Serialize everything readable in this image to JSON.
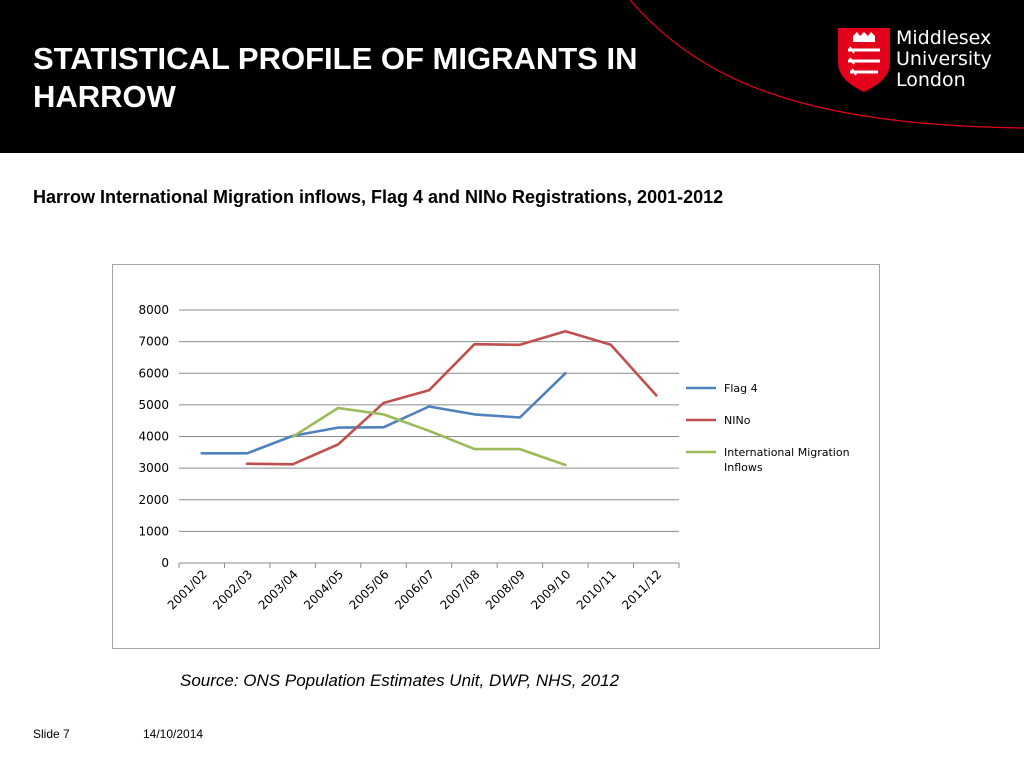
{
  "header": {
    "title": "STATISTICAL PROFILE OF MIGRANTS IN HARROW",
    "background": "#000000",
    "accent": "#e2001a"
  },
  "logo": {
    "line1": "Middlesex",
    "line2": "University",
    "line3": "London"
  },
  "chart_data": {
    "type": "line",
    "title": "Harrow International Migration inflows, Flag 4 and NINo Registrations, 2001-2012",
    "xlabel": "",
    "ylabel": "",
    "categories": [
      "2001/02",
      "2002/03",
      "2003/04",
      "2004/05",
      "2005/06",
      "2006/07",
      "2007/08",
      "2008/09",
      "2009/10",
      "2010/11",
      "2011/12"
    ],
    "ylim": [
      0,
      8000
    ],
    "yticks": [
      0,
      1000,
      2000,
      3000,
      4000,
      5000,
      6000,
      7000,
      8000
    ],
    "grid": true,
    "legend_position": "right",
    "series": [
      {
        "name": "Flag 4",
        "color": "#4f81bd",
        "values": [
          3470,
          3470,
          4020,
          4280,
          4290,
          4950,
          4700,
          4600,
          6000,
          null,
          null
        ]
      },
      {
        "name": "NINo",
        "color": "#c0504d",
        "values": [
          null,
          3140,
          3120,
          3750,
          5060,
          5460,
          6920,
          6900,
          7330,
          6900,
          5300
        ]
      },
      {
        "name": "International Migration Inflows",
        "color": "#9bbb59",
        "values": [
          null,
          null,
          3990,
          4900,
          4700,
          4180,
          3600,
          3600,
          3100,
          null,
          null
        ]
      }
    ]
  },
  "source": "Source: ONS Population Estimates Unit, DWP, NHS, 2012",
  "footer": {
    "slide": "Slide 7",
    "date": "14/10/2014"
  }
}
